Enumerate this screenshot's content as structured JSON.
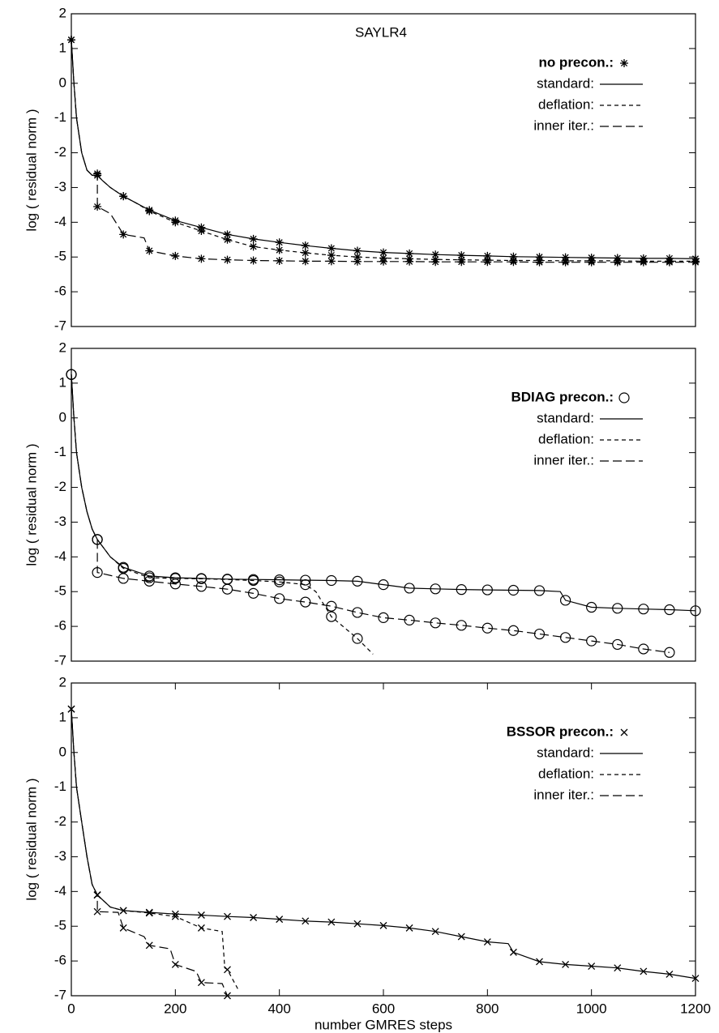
{
  "chart_data": [
    {
      "type": "line",
      "title": "SAYLR4",
      "ylabel": "log ( residual norm )",
      "legend_title": "no precon.:",
      "marker": "asterisk",
      "xlim": [
        0,
        1200
      ],
      "ylim": [
        -7,
        2
      ],
      "yticks": [
        -7,
        -6,
        -5,
        -4,
        -3,
        -2,
        -1,
        0,
        1,
        2
      ],
      "series": [
        {
          "name": "standard:",
          "color": "#000000",
          "linestyle": "solid",
          "x": [
            0,
            5,
            10,
            20,
            30,
            40,
            50,
            60,
            75,
            100,
            125,
            150,
            200,
            250,
            300,
            350,
            400,
            450,
            500,
            550,
            600,
            650,
            700,
            750,
            800,
            850,
            900,
            950,
            1000,
            1050,
            1100,
            1150,
            1200
          ],
          "values": [
            1.25,
            0,
            -1,
            -2,
            -2.5,
            -2.65,
            -2.65,
            -2.8,
            -3.0,
            -3.25,
            -3.45,
            -3.65,
            -3.95,
            -4.15,
            -4.35,
            -4.48,
            -4.58,
            -4.67,
            -4.75,
            -4.82,
            -4.87,
            -4.9,
            -4.93,
            -4.95,
            -4.97,
            -4.99,
            -5.0,
            -5.01,
            -5.02,
            -5.03,
            -5.04,
            -5.04,
            -5.05
          ]
        },
        {
          "name": "deflation:",
          "color": "#000000",
          "linestyle": "dashed",
          "x": [
            0,
            5,
            10,
            20,
            30,
            40,
            50,
            60,
            75,
            100,
            125,
            150,
            200,
            250,
            300,
            350,
            400,
            450,
            500,
            550,
            600,
            650,
            700,
            750,
            800,
            850,
            900,
            950,
            1000,
            1050,
            1100,
            1150,
            1200
          ],
          "values": [
            1.25,
            0,
            -1,
            -2,
            -2.5,
            -2.65,
            -2.65,
            -2.8,
            -3.0,
            -3.25,
            -3.45,
            -3.68,
            -4.0,
            -4.25,
            -4.5,
            -4.7,
            -4.8,
            -4.88,
            -4.95,
            -5.0,
            -5.03,
            -5.05,
            -5.07,
            -5.08,
            -5.09,
            -5.1,
            -5.1,
            -5.11,
            -5.11,
            -5.11,
            -5.12,
            -5.12,
            -5.12
          ]
        },
        {
          "name": "inner iter.:",
          "color": "#000000",
          "linestyle": "long-dashed",
          "x": [
            0,
            5,
            10,
            20,
            30,
            40,
            50,
            50,
            75,
            100,
            140,
            150,
            200,
            250,
            300,
            350,
            400,
            450,
            500,
            550,
            600,
            650,
            700,
            750,
            800,
            850,
            900,
            950,
            1000,
            1050,
            1100,
            1150,
            1200
          ],
          "values": [
            1.25,
            0,
            -1,
            -2,
            -2.5,
            -2.65,
            -2.6,
            -3.55,
            -3.75,
            -4.35,
            -4.45,
            -4.82,
            -4.97,
            -5.05,
            -5.08,
            -5.1,
            -5.11,
            -5.12,
            -5.12,
            -5.13,
            -5.13,
            -5.13,
            -5.14,
            -5.14,
            -5.14,
            -5.14,
            -5.15,
            -5.15,
            -5.15,
            -5.15,
            -5.15,
            -5.15,
            -5.15
          ]
        }
      ]
    },
    {
      "type": "line",
      "ylabel": "log ( residual norm )",
      "legend_title": "BDIAG precon.:",
      "marker": "circle",
      "xlim": [
        0,
        1200
      ],
      "ylim": [
        -7,
        2
      ],
      "yticks": [
        -7,
        -6,
        -5,
        -4,
        -3,
        -2,
        -1,
        0,
        1,
        2
      ],
      "series": [
        {
          "name": "standard:",
          "color": "#000000",
          "linestyle": "solid",
          "x": [
            0,
            5,
            10,
            20,
            30,
            40,
            50,
            75,
            100,
            150,
            200,
            250,
            300,
            350,
            400,
            450,
            500,
            550,
            600,
            650,
            700,
            750,
            800,
            850,
            900,
            940,
            950,
            1000,
            1050,
            1100,
            1150,
            1200
          ],
          "values": [
            1.25,
            0,
            -1,
            -2,
            -2.7,
            -3.2,
            -3.5,
            -4.0,
            -4.3,
            -4.55,
            -4.6,
            -4.62,
            -4.64,
            -4.65,
            -4.66,
            -4.67,
            -4.68,
            -4.7,
            -4.8,
            -4.9,
            -4.92,
            -4.94,
            -4.95,
            -4.96,
            -4.97,
            -5.0,
            -5.25,
            -5.45,
            -5.48,
            -5.5,
            -5.52,
            -5.55
          ]
        },
        {
          "name": "deflation:",
          "color": "#000000",
          "linestyle": "dashed",
          "x": [
            0,
            5,
            10,
            20,
            30,
            40,
            50,
            75,
            100,
            150,
            200,
            250,
            300,
            350,
            400,
            450,
            470,
            500,
            550,
            580
          ],
          "values": [
            1.25,
            0,
            -1,
            -2,
            -2.7,
            -3.2,
            -3.5,
            -4.0,
            -4.33,
            -4.6,
            -4.62,
            -4.63,
            -4.65,
            -4.68,
            -4.72,
            -4.8,
            -5.0,
            -5.72,
            -6.35,
            -6.8
          ]
        },
        {
          "name": "inner iter.:",
          "color": "#000000",
          "linestyle": "long-dashed",
          "x": [
            0,
            5,
            10,
            20,
            30,
            40,
            50,
            50,
            100,
            150,
            200,
            250,
            300,
            350,
            400,
            450,
            500,
            550,
            600,
            650,
            700,
            750,
            800,
            850,
            900,
            950,
            1000,
            1050,
            1100,
            1150
          ],
          "values": [
            1.25,
            0,
            -1,
            -2,
            -2.7,
            -3.2,
            -3.5,
            -4.45,
            -4.62,
            -4.7,
            -4.78,
            -4.85,
            -4.93,
            -5.05,
            -5.2,
            -5.3,
            -5.42,
            -5.6,
            -5.75,
            -5.82,
            -5.9,
            -5.97,
            -6.05,
            -6.12,
            -6.22,
            -6.32,
            -6.42,
            -6.52,
            -6.65,
            -6.75
          ]
        }
      ]
    },
    {
      "type": "line",
      "ylabel": "log ( residual norm )",
      "xlabel": "number GMRES steps",
      "legend_title": "BSSOR precon.:",
      "marker": "x",
      "xlim": [
        0,
        1200
      ],
      "ylim": [
        -7,
        2
      ],
      "xticks": [
        0,
        200,
        400,
        600,
        800,
        1000,
        1200
      ],
      "yticks": [
        -7,
        -6,
        -5,
        -4,
        -3,
        -2,
        -1,
        0,
        1,
        2
      ],
      "series": [
        {
          "name": "standard:",
          "color": "#000000",
          "linestyle": "solid",
          "x": [
            0,
            5,
            10,
            20,
            30,
            40,
            50,
            75,
            100,
            150,
            200,
            250,
            300,
            350,
            400,
            450,
            500,
            550,
            600,
            650,
            700,
            750,
            800,
            840,
            850,
            900,
            950,
            1000,
            1050,
            1100,
            1150,
            1200
          ],
          "values": [
            1.25,
            0,
            -1,
            -2,
            -3,
            -3.8,
            -4.1,
            -4.45,
            -4.55,
            -4.6,
            -4.65,
            -4.68,
            -4.72,
            -4.75,
            -4.8,
            -4.85,
            -4.88,
            -4.93,
            -4.98,
            -5.05,
            -5.15,
            -5.3,
            -5.45,
            -5.5,
            -5.75,
            -6.02,
            -6.1,
            -6.15,
            -6.2,
            -6.3,
            -6.38,
            -6.5
          ]
        },
        {
          "name": "deflation:",
          "color": "#000000",
          "linestyle": "dashed",
          "x": [
            0,
            5,
            10,
            20,
            30,
            40,
            50,
            75,
            100,
            150,
            200,
            250,
            290,
            295,
            300,
            320
          ],
          "values": [
            1.25,
            0,
            -1,
            -2,
            -3,
            -3.8,
            -4.1,
            -4.45,
            -4.55,
            -4.62,
            -4.72,
            -5.05,
            -5.15,
            -6.2,
            -6.25,
            -6.8
          ]
        },
        {
          "name": "inner iter.:",
          "color": "#000000",
          "linestyle": "long-dashed",
          "x": [
            0,
            5,
            10,
            20,
            30,
            40,
            50,
            50,
            90,
            100,
            140,
            150,
            190,
            200,
            240,
            250,
            290,
            300
          ],
          "values": [
            1.25,
            0,
            -1,
            -2,
            -3,
            -3.8,
            -4.1,
            -4.58,
            -4.6,
            -5.05,
            -5.3,
            -5.55,
            -5.65,
            -6.1,
            -6.3,
            -6.62,
            -6.65,
            -7.0
          ]
        }
      ]
    }
  ]
}
